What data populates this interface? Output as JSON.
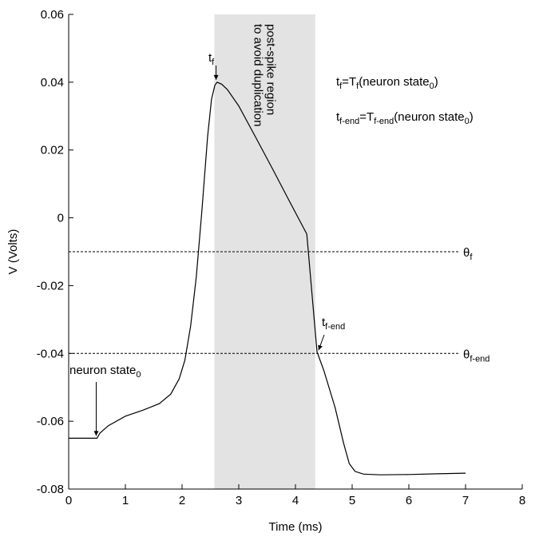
{
  "chart_data": {
    "type": "line",
    "title": "",
    "xlabel": "Time (ms)",
    "ylabel": "V (Volts)",
    "xlim": [
      0,
      8
    ],
    "ylim": [
      -0.08,
      0.06
    ],
    "xticks": [
      0,
      1,
      2,
      3,
      4,
      5,
      6,
      7,
      8
    ],
    "xtick_labels": [
      "0",
      "1",
      "2",
      "3",
      "4",
      "5",
      "6",
      "7",
      "8"
    ],
    "yticks": [
      -0.08,
      -0.06,
      -0.04,
      -0.02,
      0,
      0.02,
      0.04,
      0.06
    ],
    "ytick_labels": [
      "-0.08",
      "-0.06",
      "-0.04",
      "-0.02",
      "0",
      "0.02",
      "0.04",
      "0.06"
    ],
    "grid": false,
    "series": [
      {
        "x": [
          0,
          0.5,
          0.55,
          0.7,
          1.0,
          1.3,
          1.6,
          1.8,
          1.95,
          2.05,
          2.15,
          2.25,
          2.35,
          2.45,
          2.52,
          2.58,
          2.62,
          2.7,
          2.8,
          3.0,
          3.3,
          3.6,
          3.9,
          4.2,
          4.38,
          4.5,
          4.7,
          4.85,
          4.95,
          5.05,
          5.2,
          5.5,
          6.0,
          6.5,
          7.0
        ],
        "y": [
          -0.065,
          -0.065,
          -0.0635,
          -0.0613,
          -0.0585,
          -0.0568,
          -0.0548,
          -0.052,
          -0.0475,
          -0.042,
          -0.032,
          -0.0175,
          0.002,
          0.024,
          0.035,
          0.0392,
          0.04,
          0.0394,
          0.0378,
          0.033,
          0.0237,
          0.0143,
          0.0047,
          -0.0048,
          -0.0395,
          -0.045,
          -0.056,
          -0.0665,
          -0.0725,
          -0.0748,
          -0.0756,
          -0.0758,
          -0.0757,
          -0.0755,
          -0.0753
        ]
      }
    ],
    "shaded_region": {
      "x": [
        2.57,
        4.35
      ],
      "color": "#e3e3e3"
    },
    "region_label": [
      "post-spike region",
      "to avoid duplication"
    ],
    "hlines": [
      {
        "y": -0.01,
        "label": "θ",
        "sub": "f"
      },
      {
        "y": -0.04,
        "label": "θ",
        "sub": "f_end"
      }
    ],
    "markers": [
      {
        "x": 0.5,
        "y": -0.065,
        "label": "neuron state",
        "sub": "0"
      },
      {
        "x": 2.6,
        "y": 0.04,
        "label": "t",
        "sub": "f"
      },
      {
        "x": 4.38,
        "y": -0.0395,
        "label": "t",
        "sub": "f_end"
      }
    ],
    "equations": [
      {
        "lhs": "t",
        "lhs_sub": "f",
        "rhs": "=T",
        "rhs_sub": "f",
        "arg": "(neuron state",
        "arg_sub": "0",
        "close": ")"
      },
      {
        "lhs": "t",
        "lhs_sub": "f_end",
        "rhs": "=T",
        "rhs_sub": "f_end",
        "arg": "(neuron state",
        "arg_sub": "0",
        "close": ")"
      }
    ],
    "colors": {
      "line": "#000000",
      "shade": "#e3e3e3"
    }
  }
}
